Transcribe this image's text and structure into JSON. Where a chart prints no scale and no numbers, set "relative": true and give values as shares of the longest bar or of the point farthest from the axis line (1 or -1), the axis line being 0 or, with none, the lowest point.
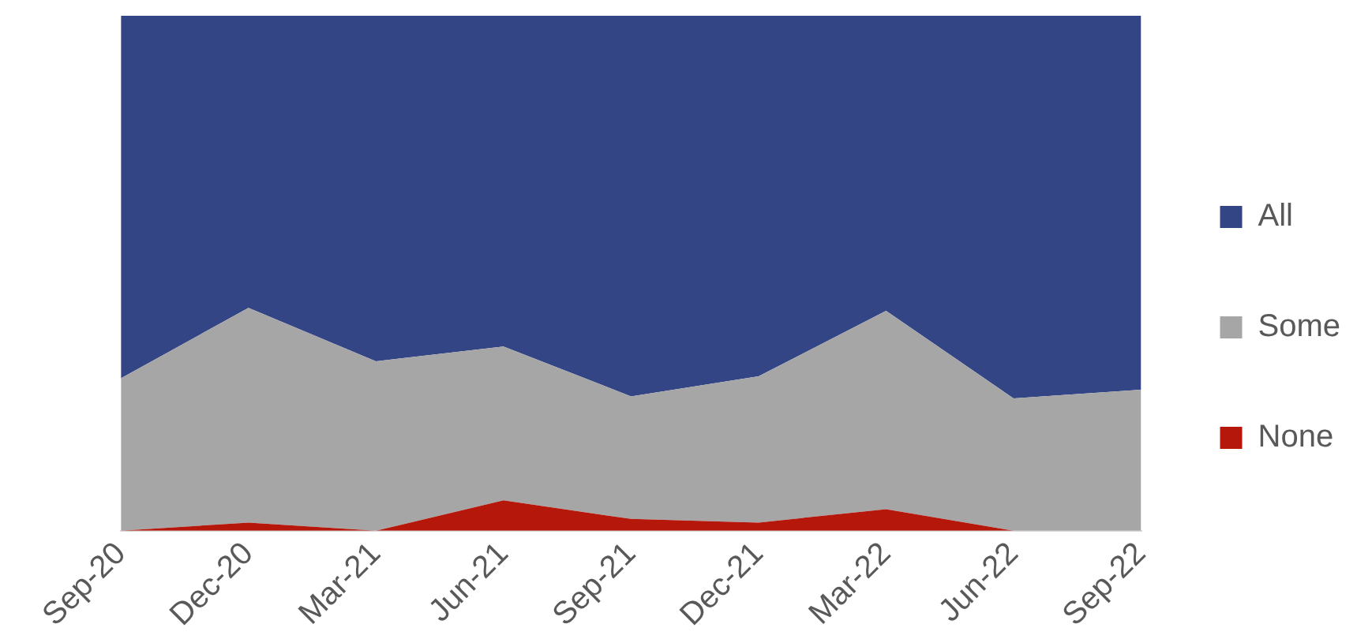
{
  "chart_data": {
    "type": "area",
    "stacked": true,
    "relative": true,
    "legend": "right",
    "categories": [
      "Sep-20",
      "Dec-20",
      "Mar-21",
      "Jun-21",
      "Sep-21",
      "Dec-21",
      "Mar-22",
      "Jun-22",
      "Sep-22"
    ],
    "series": [
      {
        "name": "None",
        "color": "#b5170b",
        "values": [
          0,
          0.016,
          0,
          0.059,
          0.023,
          0.016,
          0.042,
          0,
          0
        ]
      },
      {
        "name": "Some",
        "color": "#a6a6a6",
        "values": [
          0.296,
          0.417,
          0.329,
          0.299,
          0.238,
          0.284,
          0.385,
          0.257,
          0.274
        ]
      },
      {
        "name": "All",
        "color": "#334584",
        "values": [
          0.704,
          0.567,
          0.671,
          0.642,
          0.739,
          0.7,
          0.573,
          0.743,
          0.726
        ]
      }
    ]
  }
}
